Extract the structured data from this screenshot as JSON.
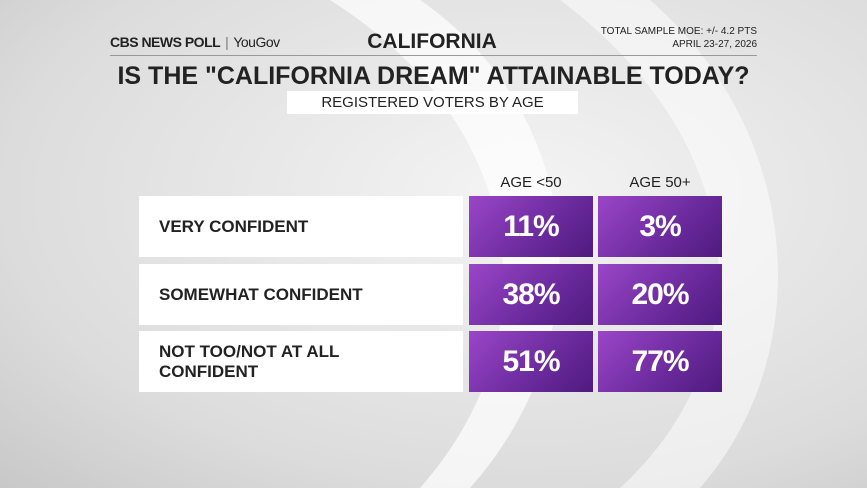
{
  "header": {
    "brand": "CBS NEWS POLL",
    "partner": "YouGov",
    "region": "CALIFORNIA",
    "moe": "TOTAL SAMPLE MOE: +/- 4.2 PTS",
    "dates": "APRIL 23-27, 2026",
    "title": "IS THE \"CALIFORNIA DREAM\" ATTAINABLE TODAY?",
    "subtitle": "REGISTERED VOTERS BY AGE"
  },
  "table": {
    "columns": [
      "AGE <50",
      "AGE 50+"
    ],
    "rows": [
      [
        "VERY CONFIDENT",
        "11%",
        "3%"
      ],
      [
        "SOMEWHAT CONFIDENT",
        "38%",
        "20%"
      ],
      [
        "NOT TOO/NOT AT ALL CONFIDENT",
        "51%",
        "77%"
      ]
    ]
  }
}
